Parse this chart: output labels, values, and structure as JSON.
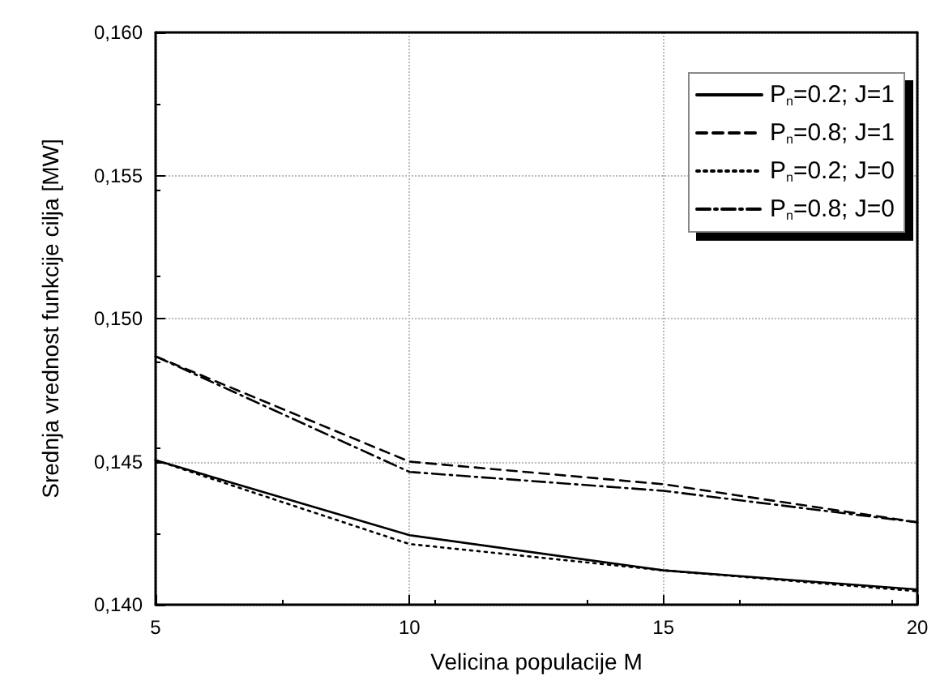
{
  "chart_data": {
    "type": "line",
    "xlabel": "Velicina populacije M",
    "ylabel": "Srednja vrednost funkcije cilja [MW]",
    "x": [
      5,
      10,
      15,
      20
    ],
    "series": [
      {
        "name": "P$_{n}$=0.2; J=1",
        "color": "#000000",
        "line_style": "solid",
        "values": [
          0.14505,
          0.14243,
          0.1412,
          0.14053
        ]
      },
      {
        "name": "P$_{n}$=0.8; J=1",
        "color": "#000000",
        "line_style": "dashed",
        "values": [
          0.14868,
          0.145,
          0.14421,
          0.14288
        ]
      },
      {
        "name": "P$_{n}$=0.2; J=0",
        "color": "#000000",
        "line_style": "dotted",
        "values": [
          0.14505,
          0.14212,
          0.1412,
          0.14047
        ]
      },
      {
        "name": "P$_{n}$=0.8; J=0",
        "color": "#000000",
        "line_style": "dashdot",
        "values": [
          0.14868,
          0.14464,
          0.14398,
          0.14288
        ]
      }
    ],
    "xlim": [
      5,
      20
    ],
    "xticks": [
      5,
      10,
      15,
      20
    ],
    "ylim": [
      0.14,
      0.16
    ],
    "yticks": [
      {
        "value": 0.14,
        "label": "0,140"
      },
      {
        "value": 0.145,
        "label": "0,145"
      },
      {
        "value": 0.15,
        "label": "0,150"
      },
      {
        "value": 0.155,
        "label": "0,155"
      },
      {
        "value": 0.16,
        "label": "0,160"
      }
    ],
    "grid": true,
    "legend": "top right",
    "marker": "none"
  }
}
